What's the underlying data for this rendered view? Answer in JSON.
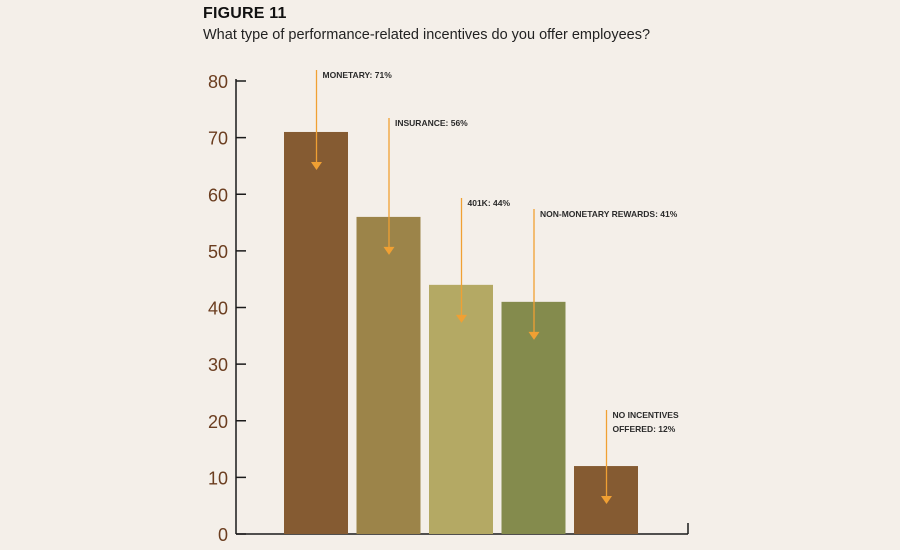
{
  "figure": {
    "label": "FIGURE 11",
    "question": "What type of performance-related incentives do you offer employees?"
  },
  "chart_data": {
    "type": "bar",
    "categories": [
      "Monetary",
      "Insurance",
      "401K",
      "Non-monetary rewards",
      "No incentives offered"
    ],
    "values": [
      71,
      56,
      44,
      41,
      12
    ],
    "annotations": [
      [
        "MONETARY: 71%"
      ],
      [
        "INSURANCE: 56%"
      ],
      [
        "401K: 44%"
      ],
      [
        "NON-MONETARY REWARDS: 41%"
      ],
      [
        "NO INCENTIVES",
        "OFFERED: 12%"
      ]
    ],
    "bar_colors": [
      "#855b32",
      "#9c8449",
      "#b4a964",
      "#848b4d",
      "#855b32"
    ],
    "arrow_color": "#f0a033",
    "axis_color": "#1a1a1a",
    "tick_color": "#6b3d1f",
    "ylim": [
      0,
      80
    ],
    "yticks": [
      0,
      10,
      20,
      30,
      40,
      50,
      60,
      70,
      80
    ],
    "grid": false
  }
}
